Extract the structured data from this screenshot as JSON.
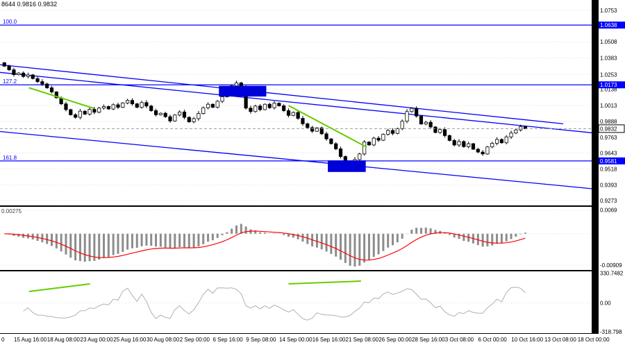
{
  "quote_bar": {
    "text": "8644 0.9816 0.9832"
  },
  "colors": {
    "background": "#ffffff",
    "frame": "#000000",
    "grid": "#d9d9d9",
    "candle": "#000000",
    "candle_up_fill": "#ffffff",
    "candle_down_fill": "#000000",
    "fib_blue": "#0000ff",
    "trend_blue": "#0000ff",
    "box_blue": "#0000d8",
    "green": "#66cc00",
    "macd_hist": "#8c8c8c",
    "macd_signal": "#ff0000",
    "cci_line": "#b0b0b0",
    "current_price_line": "#999999"
  },
  "chart_data": {
    "type": "candlestick",
    "price_panel": {
      "y_range": [
        0.924,
        1.079
      ],
      "axis_ticks": [
        1.0753,
        1.0638,
        1.0508,
        1.0383,
        1.0253,
        1.0138,
        1.0013,
        0.9888,
        0.9763,
        0.9643,
        0.9518,
        0.9393,
        0.9273
      ],
      "current_price": 0.9832,
      "first_open": 1.0345,
      "closes": [
        1.0318,
        1.029,
        1.0252,
        1.0265,
        1.0238,
        1.025,
        1.0222,
        1.0198,
        1.018,
        1.015,
        1.0118,
        1.0072,
        1.0025,
        0.998,
        0.994,
        0.992,
        0.9968,
        0.9945,
        0.9982,
        0.996,
        0.9992,
        1.0005,
        0.9985,
        1.0018,
        0.9998,
        1.0032,
        1.0052,
        1.0025,
        0.9998,
        1.0035,
        1.0008,
        0.9972,
        0.994,
        0.9952,
        0.9925,
        0.9892,
        0.9938,
        0.9962,
        0.992,
        0.9885,
        0.991,
        0.995,
        0.9995,
        1.0022,
        0.9998,
        1.0045,
        1.008,
        1.0118,
        1.0165,
        1.0188,
        1.0155,
        0.9992,
        0.9965,
        1.0008,
        0.998,
        1.0022,
        0.9995,
        1.003,
        1.001,
        0.9972,
        0.9935,
        0.9958,
        0.9912,
        0.987,
        0.984,
        0.9812,
        0.9838,
        0.9792,
        0.9752,
        0.9715,
        0.9675,
        0.9615,
        0.9572,
        0.9545,
        0.9592,
        0.9635,
        0.9728,
        0.9705,
        0.9758,
        0.9742,
        0.9788,
        0.9818,
        0.9795,
        0.9832,
        0.989,
        0.9965,
        0.999,
        0.993,
        0.9868,
        0.9882,
        0.9845,
        0.9802,
        0.9825,
        0.9778,
        0.974,
        0.9705,
        0.9732,
        0.9692,
        0.9715,
        0.9672,
        0.965,
        0.9635,
        0.969,
        0.9718,
        0.9748,
        0.9722,
        0.9768,
        0.9798,
        0.9822,
        0.9848,
        0.9832
      ],
      "fib_levels": [
        {
          "label": "100.0",
          "price": 1.0638
        },
        {
          "label": "127.2",
          "price": 1.0173
        },
        {
          "label": "161.8",
          "price": 0.9581
        }
      ],
      "trendlines": [
        {
          "from_i": -1,
          "from_p": 1.033,
          "to_i": 118,
          "to_p": 0.987
        },
        {
          "from_i": -1,
          "from_p": 1.027,
          "to_i": 124,
          "to_p": 0.98
        },
        {
          "from_i": -1,
          "from_p": 0.981,
          "to_i": 124,
          "to_p": 0.9365
        }
      ],
      "boxes": [
        {
          "i1": 45.3,
          "i2": 55.3,
          "p1": 1.0165,
          "p2": 1.0082
        },
        {
          "i1": 68.3,
          "i2": 76.3,
          "p1": 0.9585,
          "p2": 0.9495
        }
      ],
      "green_lines": [
        {
          "from_i": 5.2,
          "from_p": 1.015,
          "to_i": 18.9,
          "to_p": 0.999
        },
        {
          "from_i": 60.0,
          "from_p": 1.0012,
          "to_i": 76.5,
          "to_p": 0.9688
        }
      ]
    },
    "macd_panel": {
      "value_label": "0.00275",
      "y_range": [
        -0.0105,
        0.008
      ],
      "axis_ticks": [
        {
          "label": "0.0069",
          "v": 0.0069
        },
        {
          "label": "-0.00909",
          "v": -0.00909
        }
      ]
    },
    "cci_panel": {
      "y_range": [
        -335,
        350
      ],
      "axis_ticks": [
        {
          "label": "330.7482",
          "v": 330.7482
        },
        {
          "label": "0.00",
          "v": 0
        },
        {
          "label": "-318.798",
          "v": -318.798
        }
      ],
      "green_lines": [
        {
          "from_i": 5.2,
          "from_v": 127,
          "to_i": 18.1,
          "to_v": 211
        },
        {
          "from_i": 60.0,
          "from_v": 211,
          "to_i": 75.3,
          "to_v": 242
        }
      ]
    },
    "time_axis": {
      "labels": [
        "0",
        "15 Aug 16:00",
        "18 Aug 08:00",
        "23 Aug 00:00",
        "25 Aug 16:00",
        "30 Aug 08:00",
        "2 Sep 00:00",
        "6 Sep 16:00",
        "9 Sep 08:00",
        "14 Sep 00:00",
        "16 Sep 16:00",
        "21 Sep 08:00",
        "26 Sep 00:00",
        "28 Sep 16:00",
        "3 Oct 08:00",
        "6 Oct 00:00",
        "10 Oct 16:00",
        "13 Oct 08:00",
        "18 Oct 00:00"
      ]
    }
  }
}
